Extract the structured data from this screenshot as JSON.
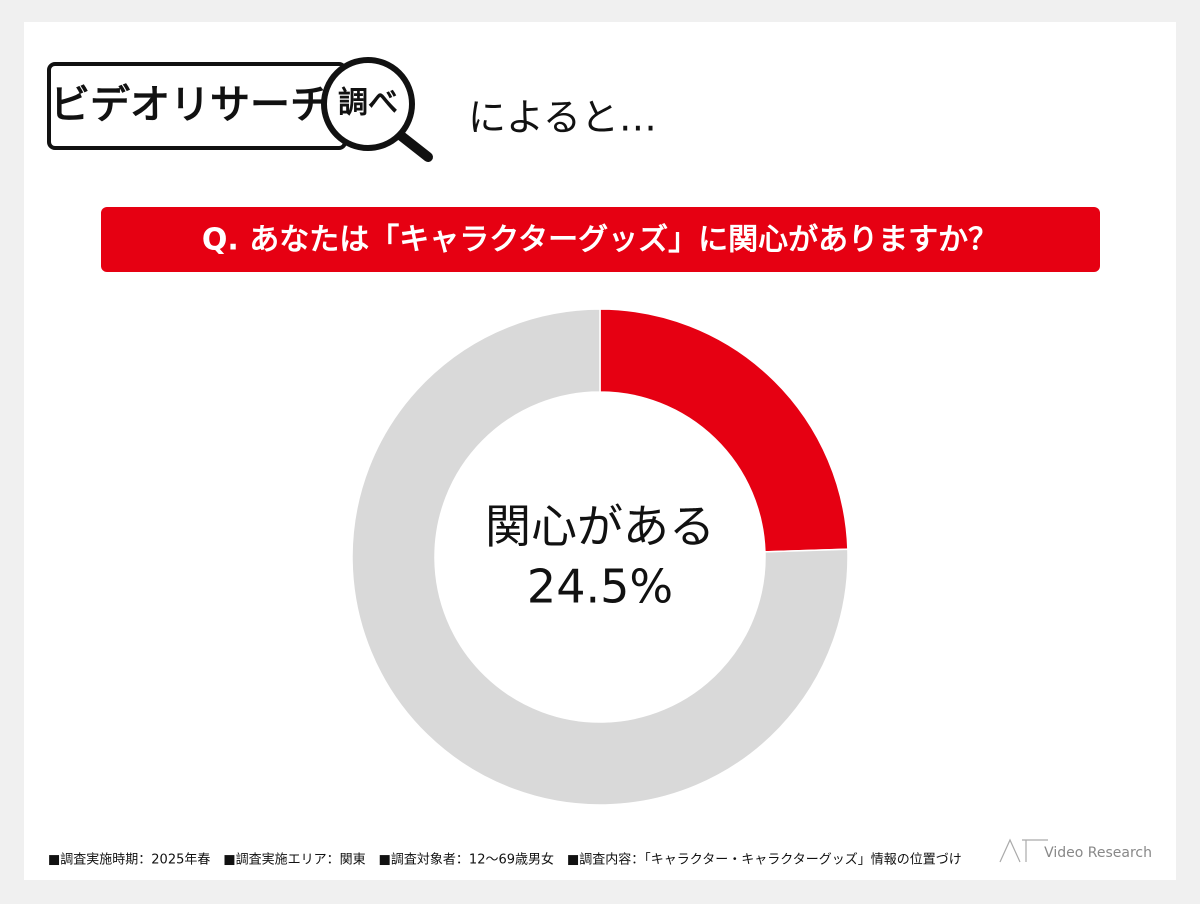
{
  "header": {
    "logo": "ビデオリサーチ",
    "logo_mark": "調べ",
    "suffix": "によると…"
  },
  "chart_data": {
    "type": "donut",
    "title": "Q. あなたは「キャラクターグッズ」に関心がありますか？",
    "categories": [
      "関心がある",
      null
    ],
    "values": [
      24.5,
      75.5
    ],
    "value_labels": [
      "24.5%",
      null
    ],
    "colors": [
      "#e60012",
      "#d9d9d9"
    ]
  },
  "footer": {
    "note": "■調査実施時期：2025年春　■調査実施エリア：関東　■調査対象者：12～69歳男女　■調査内容：「キャラクター・キャラクターグッズ」情報の位置づけ",
    "brand": "Video Research"
  }
}
